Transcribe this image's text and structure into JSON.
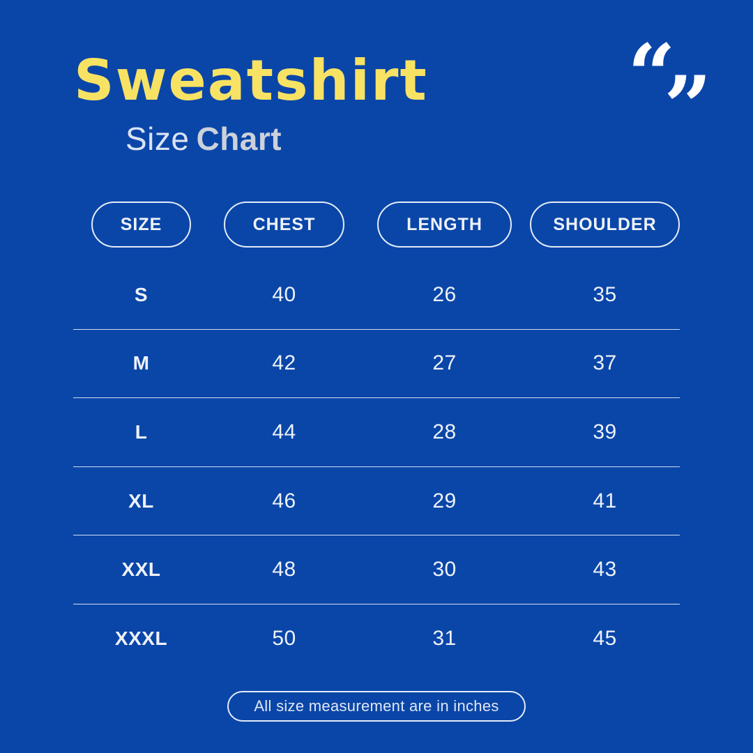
{
  "colors": {
    "background": "#0a46a8",
    "title_yellow": "#f8e264",
    "subtitle_light": "#d9e3f3",
    "subtitle_gray": "#ccd1da",
    "table_text": "#eef2f8",
    "line_border": "#e4ecf8"
  },
  "header": {
    "title": "Sweatshirt",
    "subtitle_regular": "Size",
    "subtitle_bold": "Chart"
  },
  "icons": {
    "quote_open": "“",
    "quote_close": "”"
  },
  "table": {
    "columns": [
      "SIZE",
      "CHEST",
      "LENGTH",
      "SHOULDER"
    ],
    "rows": [
      {
        "size": "S",
        "chest": "40",
        "length": "26",
        "shoulder": "35"
      },
      {
        "size": "M",
        "chest": "42",
        "length": "27",
        "shoulder": "37"
      },
      {
        "size": "L",
        "chest": "44",
        "length": "28",
        "shoulder": "39"
      },
      {
        "size": "XL",
        "chest": "46",
        "length": "29",
        "shoulder": "41"
      },
      {
        "size": "XXL",
        "chest": "48",
        "length": "30",
        "shoulder": "43"
      },
      {
        "size": "XXXL",
        "chest": "50",
        "length": "31",
        "shoulder": "45"
      }
    ]
  },
  "footer": {
    "note": "All size measurement are in inches"
  }
}
